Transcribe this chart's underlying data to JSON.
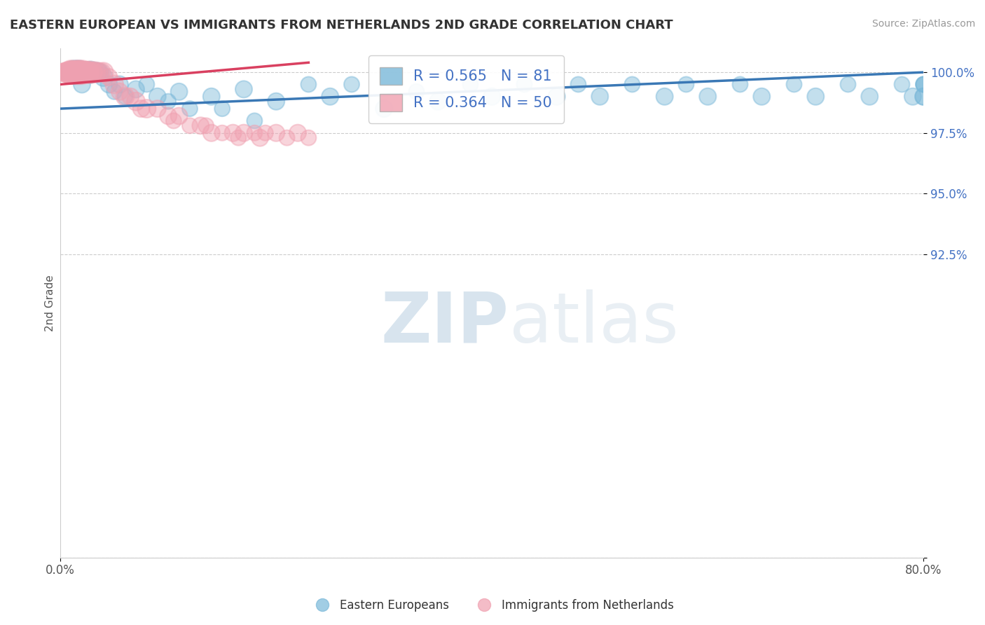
{
  "title": "EASTERN EUROPEAN VS IMMIGRANTS FROM NETHERLANDS 2ND GRADE CORRELATION CHART",
  "source": "Source: ZipAtlas.com",
  "ylabel": "2nd Grade",
  "yticks": [
    80.0,
    92.5,
    95.0,
    97.5,
    100.0
  ],
  "ytick_labels": [
    "",
    "92.5%",
    "95.0%",
    "97.5%",
    "100.0%"
  ],
  "xmin": 0.0,
  "xmax": 80.0,
  "ymin": 80.0,
  "ymax": 101.0,
  "blue_R": 0.565,
  "blue_N": 81,
  "pink_R": 0.364,
  "pink_N": 50,
  "blue_color": "#7ab8d9",
  "pink_color": "#f0a0b0",
  "blue_line_color": "#3a78b5",
  "pink_line_color": "#d94060",
  "legend_label_blue": "Eastern Europeans",
  "legend_label_pink": "Immigrants from Netherlands",
  "watermark_zip": "ZIP",
  "watermark_atlas": "atlas",
  "blue_x": [
    0.2,
    0.3,
    0.4,
    0.5,
    0.6,
    0.7,
    0.8,
    0.9,
    1.0,
    1.0,
    1.1,
    1.2,
    1.3,
    1.4,
    1.5,
    1.6,
    1.7,
    1.8,
    1.9,
    2.0,
    2.0,
    2.1,
    2.2,
    2.3,
    2.4,
    2.5,
    2.6,
    2.7,
    2.8,
    2.9,
    3.0,
    3.1,
    3.2,
    3.3,
    3.5,
    3.7,
    4.0,
    4.5,
    5.0,
    5.5,
    6.0,
    7.0,
    8.0,
    9.0,
    10.0,
    11.0,
    12.0,
    14.0,
    15.0,
    17.0,
    18.0,
    20.0,
    23.0,
    25.0,
    27.0,
    30.0,
    33.0,
    35.0,
    38.0,
    40.0,
    43.0,
    46.0,
    48.0,
    50.0,
    53.0,
    56.0,
    58.0,
    60.0,
    63.0,
    65.0,
    68.0,
    70.0,
    73.0,
    75.0,
    78.0,
    79.0,
    80.0,
    80.0,
    80.0,
    80.0,
    80.0
  ],
  "blue_y": [
    100.0,
    100.0,
    100.0,
    100.0,
    100.0,
    100.0,
    100.0,
    100.0,
    100.0,
    100.0,
    100.0,
    100.0,
    100.0,
    100.0,
    100.0,
    100.0,
    100.0,
    100.0,
    100.0,
    100.0,
    99.5,
    100.0,
    100.0,
    100.0,
    100.0,
    100.0,
    100.0,
    100.0,
    100.0,
    100.0,
    100.0,
    100.0,
    100.0,
    100.0,
    100.0,
    100.0,
    99.8,
    99.5,
    99.2,
    99.5,
    99.0,
    99.3,
    99.5,
    99.0,
    98.8,
    99.2,
    98.5,
    99.0,
    98.5,
    99.3,
    98.0,
    98.8,
    99.5,
    99.0,
    99.5,
    98.5,
    99.2,
    98.8,
    99.5,
    99.0,
    99.5,
    99.0,
    99.5,
    99.0,
    99.5,
    99.0,
    99.5,
    99.0,
    99.5,
    99.0,
    99.5,
    99.0,
    99.5,
    99.0,
    99.5,
    99.0,
    99.5,
    99.0,
    99.5,
    99.0,
    99.5
  ],
  "blue_sizes": [
    150,
    200,
    200,
    250,
    300,
    200,
    300,
    250,
    350,
    400,
    450,
    500,
    600,
    400,
    350,
    500,
    600,
    450,
    350,
    400,
    300,
    350,
    400,
    450,
    300,
    350,
    400,
    450,
    500,
    350,
    400,
    350,
    300,
    400,
    350,
    300,
    350,
    300,
    250,
    300,
    250,
    300,
    250,
    300,
    250,
    300,
    250,
    300,
    250,
    300,
    250,
    300,
    250,
    300,
    250,
    300,
    250,
    300,
    250,
    300,
    250,
    300,
    250,
    300,
    250,
    300,
    250,
    300,
    250,
    300,
    250,
    300,
    250,
    300,
    250,
    300,
    250,
    300,
    250,
    300,
    250
  ],
  "pink_x": [
    0.1,
    0.3,
    0.5,
    0.7,
    0.9,
    1.0,
    1.1,
    1.3,
    1.5,
    1.6,
    1.7,
    1.9,
    2.0,
    2.1,
    2.3,
    2.5,
    2.6,
    2.8,
    3.0,
    3.2,
    3.5,
    3.8,
    4.0,
    4.5,
    5.0,
    5.5,
    6.0,
    6.5,
    7.0,
    7.5,
    8.0,
    9.0,
    10.0,
    10.5,
    11.0,
    12.0,
    13.0,
    13.5,
    14.0,
    15.0,
    16.0,
    16.5,
    17.0,
    18.0,
    18.5,
    19.0,
    20.0,
    21.0,
    22.0,
    23.0
  ],
  "pink_y": [
    100.0,
    100.0,
    100.0,
    100.0,
    100.0,
    100.0,
    100.0,
    100.0,
    100.0,
    100.0,
    100.0,
    100.0,
    100.0,
    100.0,
    100.0,
    100.0,
    100.0,
    100.0,
    100.0,
    100.0,
    100.0,
    100.0,
    100.0,
    99.8,
    99.5,
    99.2,
    99.0,
    99.0,
    98.8,
    98.5,
    98.5,
    98.5,
    98.2,
    98.0,
    98.2,
    97.8,
    97.8,
    97.8,
    97.5,
    97.5,
    97.5,
    97.3,
    97.5,
    97.5,
    97.3,
    97.5,
    97.5,
    97.3,
    97.5,
    97.3
  ],
  "pink_sizes": [
    300,
    350,
    400,
    450,
    500,
    600,
    550,
    500,
    600,
    500,
    600,
    500,
    600,
    500,
    450,
    500,
    450,
    500,
    400,
    450,
    400,
    350,
    400,
    300,
    350,
    300,
    350,
    300,
    350,
    300,
    350,
    300,
    300,
    250,
    300,
    250,
    300,
    250,
    300,
    250,
    300,
    250,
    300,
    250,
    300,
    250,
    300,
    250,
    300,
    250
  ],
  "trend_blue_x0": 0.0,
  "trend_blue_x1": 80.0,
  "trend_blue_y0": 98.5,
  "trend_blue_y1": 100.0,
  "trend_pink_x0": 0.0,
  "trend_pink_x1": 23.0,
  "trend_pink_y0": 99.5,
  "trend_pink_y1": 100.4
}
